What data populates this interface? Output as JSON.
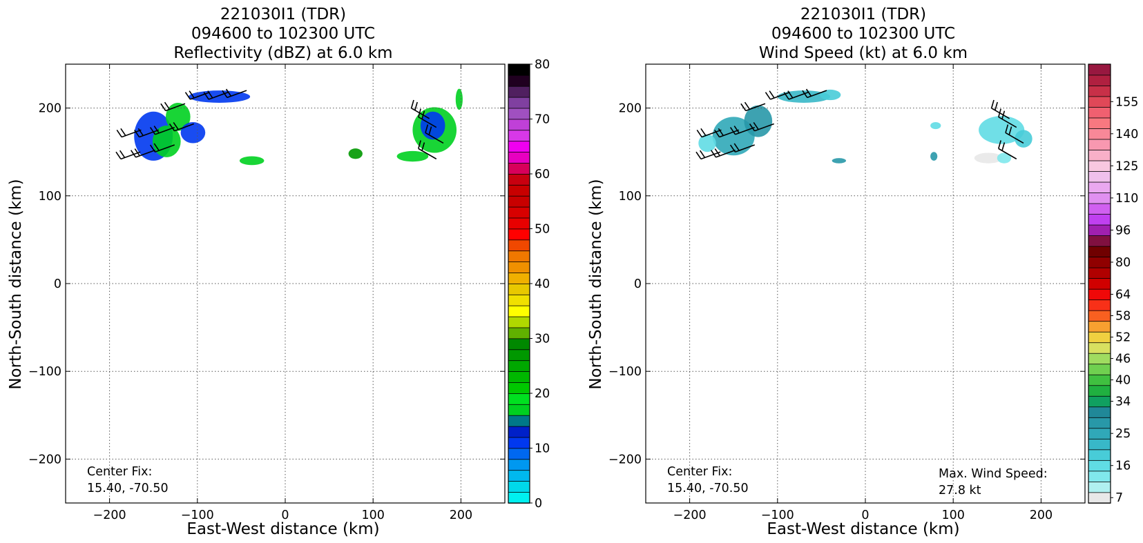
{
  "chart_data": [
    {
      "type": "heatmap",
      "title": [
        "221030I1 (TDR)",
        "094600 to 102300 UTC",
        "Reflectivity (dBZ) at 6.0 km"
      ],
      "xlabel": "East-West distance (km)",
      "ylabel": "North-South distance (km)",
      "xlim": [
        -250,
        250
      ],
      "ylim": [
        -250,
        250
      ],
      "xticks": [
        -200,
        -100,
        0,
        100,
        200
      ],
      "yticks": [
        -200,
        -100,
        0,
        100,
        200
      ],
      "xtick_labels": [
        "−200",
        "−100",
        "0",
        "100",
        "200"
      ],
      "ytick_labels": [
        "−200",
        "−100",
        "0",
        "100",
        "200"
      ],
      "grid": true,
      "annotations": [
        {
          "lines": [
            "Center Fix:",
            "15.40, -70.50"
          ],
          "position": "bottom-left"
        }
      ],
      "colorbar": {
        "min": 0,
        "max": 80,
        "colors": [
          "#00f0f0",
          "#00d8ea",
          "#00b8ee",
          "#0098f0",
          "#0068f0",
          "#0038f0",
          "#0020c8",
          "#007888",
          "#00d020",
          "#00e020",
          "#00c800",
          "#00b800",
          "#00a800",
          "#009800",
          "#008800",
          "#60b000",
          "#b0d800",
          "#ffff00",
          "#f0e000",
          "#e8c800",
          "#f0b000",
          "#f09000",
          "#f07800",
          "#f04800",
          "#ff0000",
          "#e80000",
          "#d80000",
          "#c80000",
          "#c80000",
          "#c80010",
          "#d8005a",
          "#e800c0",
          "#f000f0",
          "#d838e8",
          "#c040d8",
          "#a050c0",
          "#8040a0",
          "#502060",
          "#200020",
          "#000000"
        ],
        "tick_labels": [
          "0",
          "10",
          "20",
          "30",
          "40",
          "50",
          "60",
          "70",
          "80"
        ]
      },
      "echo_clusters": [
        {
          "x": -150,
          "y": 168,
          "rx": 22,
          "ry": 28,
          "color": "#0038f0"
        },
        {
          "x": -122,
          "y": 190,
          "rx": 14,
          "ry": 16,
          "color": "#00d020"
        },
        {
          "x": -135,
          "y": 162,
          "rx": 16,
          "ry": 18,
          "color": "#00d020"
        },
        {
          "x": -105,
          "y": 172,
          "rx": 14,
          "ry": 12,
          "color": "#0038f0"
        },
        {
          "x": -75,
          "y": 213,
          "rx": 35,
          "ry": 7,
          "color": "#0038f0"
        },
        {
          "x": -38,
          "y": 140,
          "rx": 14,
          "ry": 5,
          "color": "#00d020"
        },
        {
          "x": 80,
          "y": 148,
          "rx": 8,
          "ry": 6,
          "color": "#009800"
        },
        {
          "x": 170,
          "y": 175,
          "rx": 25,
          "ry": 26,
          "color": "#00d020"
        },
        {
          "x": 168,
          "y": 180,
          "rx": 14,
          "ry": 16,
          "color": "#0038f0"
        },
        {
          "x": 145,
          "y": 145,
          "rx": 18,
          "ry": 6,
          "color": "#00d020"
        },
        {
          "x": 198,
          "y": 210,
          "rx": 4,
          "ry": 12,
          "color": "#00d020"
        }
      ],
      "wind_barbs": [
        {
          "x": -164,
          "y": 175,
          "dir": 250
        },
        {
          "x": -144,
          "y": 175,
          "dir": 250
        },
        {
          "x": -126,
          "y": 178,
          "dir": 250
        },
        {
          "x": -104,
          "y": 182,
          "dir": 250
        },
        {
          "x": -165,
          "y": 150,
          "dir": 250
        },
        {
          "x": -148,
          "y": 152,
          "dir": 250
        },
        {
          "x": -126,
          "y": 158,
          "dir": 250
        },
        {
          "x": -114,
          "y": 205,
          "dir": 250
        },
        {
          "x": -86,
          "y": 218,
          "dir": 250
        },
        {
          "x": -65,
          "y": 218,
          "dir": 250
        },
        {
          "x": -44,
          "y": 220,
          "dir": 250
        },
        {
          "x": 172,
          "y": 178,
          "dir": 300
        },
        {
          "x": 180,
          "y": 160,
          "dir": 300
        },
        {
          "x": 172,
          "y": 142,
          "dir": 300
        },
        {
          "x": 164,
          "y": 188,
          "dir": 300
        }
      ]
    },
    {
      "type": "heatmap",
      "title": [
        "221030I1 (TDR)",
        "094600 to 102300 UTC",
        "Wind Speed (kt) at 6.0 km"
      ],
      "xlabel": "East-West distance (km)",
      "ylabel": "North-South distance (km)",
      "xlim": [
        -250,
        250
      ],
      "ylim": [
        -250,
        250
      ],
      "xticks": [
        -200,
        -100,
        0,
        100,
        200
      ],
      "yticks": [
        -200,
        -100,
        0,
        100,
        200
      ],
      "xtick_labels": [
        "−200",
        "−100",
        "0",
        "100",
        "200"
      ],
      "ytick_labels": [
        "−200",
        "−100",
        "0",
        "100",
        "200"
      ],
      "grid": true,
      "annotations": [
        {
          "lines": [
            "Center Fix:",
            "15.40, -70.50"
          ],
          "position": "bottom-left"
        },
        {
          "lines": [
            "Max. Wind Speed:",
            "27.8 kt"
          ],
          "position": "bottom-right"
        }
      ],
      "max_wind_speed_kt": 27.8,
      "colorbar": {
        "colors": [
          "#e8e8e8",
          "#b0f0f0",
          "#80e8ec",
          "#60dce4",
          "#48ccd8",
          "#38b8c8",
          "#30a8b8",
          "#2898a8",
          "#208898",
          "#10a060",
          "#20b040",
          "#40c040",
          "#70d050",
          "#a0dc60",
          "#d8e060",
          "#f0d040",
          "#f8a030",
          "#f86020",
          "#f83018",
          "#f00808",
          "#d00000",
          "#b00000",
          "#900000",
          "#700000",
          "#801040",
          "#a020b0",
          "#c040f0",
          "#d060f0",
          "#e090f0",
          "#eaa8f0",
          "#f0c0ec",
          "#f8c8e0",
          "#f8b0c8",
          "#f898b0",
          "#f88898",
          "#f87880",
          "#f06070",
          "#e04858",
          "#c83048",
          "#b02040",
          "#981840"
        ],
        "tick_labels": [
          "7",
          "16",
          "25",
          "34",
          "40",
          "46",
          "52",
          "58",
          "64",
          "80",
          "96",
          "110",
          "125",
          "140",
          "155"
        ]
      },
      "echo_clusters": [
        {
          "x": -150,
          "y": 168,
          "rx": 24,
          "ry": 22,
          "color": "#30a8b8"
        },
        {
          "x": -122,
          "y": 185,
          "rx": 16,
          "ry": 18,
          "color": "#2898a8"
        },
        {
          "x": -180,
          "y": 160,
          "rx": 10,
          "ry": 10,
          "color": "#60dce4"
        },
        {
          "x": -70,
          "y": 213,
          "rx": 30,
          "ry": 7,
          "color": "#38b8c8"
        },
        {
          "x": -40,
          "y": 215,
          "rx": 12,
          "ry": 6,
          "color": "#48ccd8"
        },
        {
          "x": -30,
          "y": 140,
          "rx": 8,
          "ry": 3,
          "color": "#2898a8"
        },
        {
          "x": 80,
          "y": 180,
          "rx": 6,
          "ry": 4,
          "color": "#60dce4"
        },
        {
          "x": 78,
          "y": 145,
          "rx": 4,
          "ry": 5,
          "color": "#2898a8"
        },
        {
          "x": 155,
          "y": 175,
          "rx": 26,
          "ry": 16,
          "color": "#60dce4"
        },
        {
          "x": 180,
          "y": 165,
          "rx": 10,
          "ry": 10,
          "color": "#48ccd8"
        },
        {
          "x": 140,
          "y": 143,
          "rx": 16,
          "ry": 6,
          "color": "#e8e8e8"
        },
        {
          "x": 158,
          "y": 143,
          "rx": 8,
          "ry": 6,
          "color": "#80e8ec"
        }
      ],
      "wind_barbs": [
        {
          "x": -164,
          "y": 175,
          "dir": 250
        },
        {
          "x": -144,
          "y": 175,
          "dir": 250
        },
        {
          "x": -126,
          "y": 178,
          "dir": 250
        },
        {
          "x": -104,
          "y": 182,
          "dir": 250
        },
        {
          "x": -165,
          "y": 150,
          "dir": 250
        },
        {
          "x": -148,
          "y": 152,
          "dir": 250
        },
        {
          "x": -126,
          "y": 158,
          "dir": 250
        },
        {
          "x": -114,
          "y": 205,
          "dir": 250
        },
        {
          "x": -86,
          "y": 218,
          "dir": 250
        },
        {
          "x": -65,
          "y": 218,
          "dir": 250
        },
        {
          "x": -44,
          "y": 220,
          "dir": 250
        },
        {
          "x": 172,
          "y": 178,
          "dir": 300
        },
        {
          "x": 180,
          "y": 160,
          "dir": 300
        },
        {
          "x": 172,
          "y": 142,
          "dir": 300
        },
        {
          "x": 164,
          "y": 188,
          "dir": 300
        }
      ]
    }
  ]
}
